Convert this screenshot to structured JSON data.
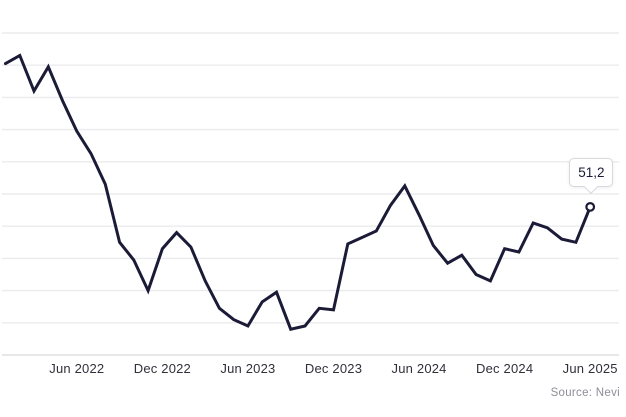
{
  "chart_data": {
    "type": "line",
    "title": "",
    "x": [
      "Jan 2022",
      "Feb 2022",
      "Mar 2022",
      "Apr 2022",
      "May 2022",
      "Jun 2022",
      "Jul 2022",
      "Aug 2022",
      "Sep 2022",
      "Oct 2022",
      "Nov 2022",
      "Dec 2022",
      "Jan 2023",
      "Feb 2023",
      "Mar 2023",
      "Apr 2023",
      "May 2023",
      "Jun 2023",
      "Jul 2023",
      "Aug 2023",
      "Sep 2023",
      "Oct 2023",
      "Nov 2023",
      "Dec 2023",
      "Jan 2024",
      "Feb 2024",
      "Mar 2024",
      "Apr 2024",
      "May 2024",
      "Jun 2024",
      "Jul 2024",
      "Aug 2024",
      "Sep 2024",
      "Oct 2024",
      "Nov 2024",
      "Dec 2024",
      "Jan 2025",
      "Feb 2025",
      "Mar 2025",
      "Apr 2025",
      "May 2025",
      "Jun 2025"
    ],
    "values": [
      60.1,
      60.6,
      58.4,
      59.9,
      57.8,
      55.9,
      54.5,
      52.6,
      49.0,
      47.9,
      46.0,
      48.6,
      49.6,
      48.7,
      46.6,
      44.9,
      44.2,
      43.8,
      45.3,
      45.9,
      43.6,
      43.8,
      44.9,
      44.8,
      48.9,
      49.3,
      49.7,
      51.3,
      52.5,
      50.7,
      48.8,
      47.7,
      48.2,
      47.0,
      46.6,
      48.6,
      48.4,
      50.2,
      49.9,
      49.2,
      49.0,
      51.2
    ],
    "x_tick_labels": [
      "Jun 2022",
      "Dec 2022",
      "Jun 2023",
      "Dec 2023",
      "Jun 2024",
      "Dec 2024",
      "Jun 2025"
    ],
    "x_tick_month_indices": [
      5,
      11,
      17,
      23,
      29,
      35,
      41
    ],
    "y_axis": {
      "min": 42,
      "max": 62,
      "step": 2,
      "tick_labels_visible": false
    },
    "grid": "horizontal-only",
    "legend_position": "none",
    "line_color": "#1b1b38",
    "grid_color": "#ebebee",
    "last_point_label": "51,2"
  },
  "tooltip": {
    "value": "51,2"
  },
  "source": {
    "text": "Source: Nevi"
  }
}
